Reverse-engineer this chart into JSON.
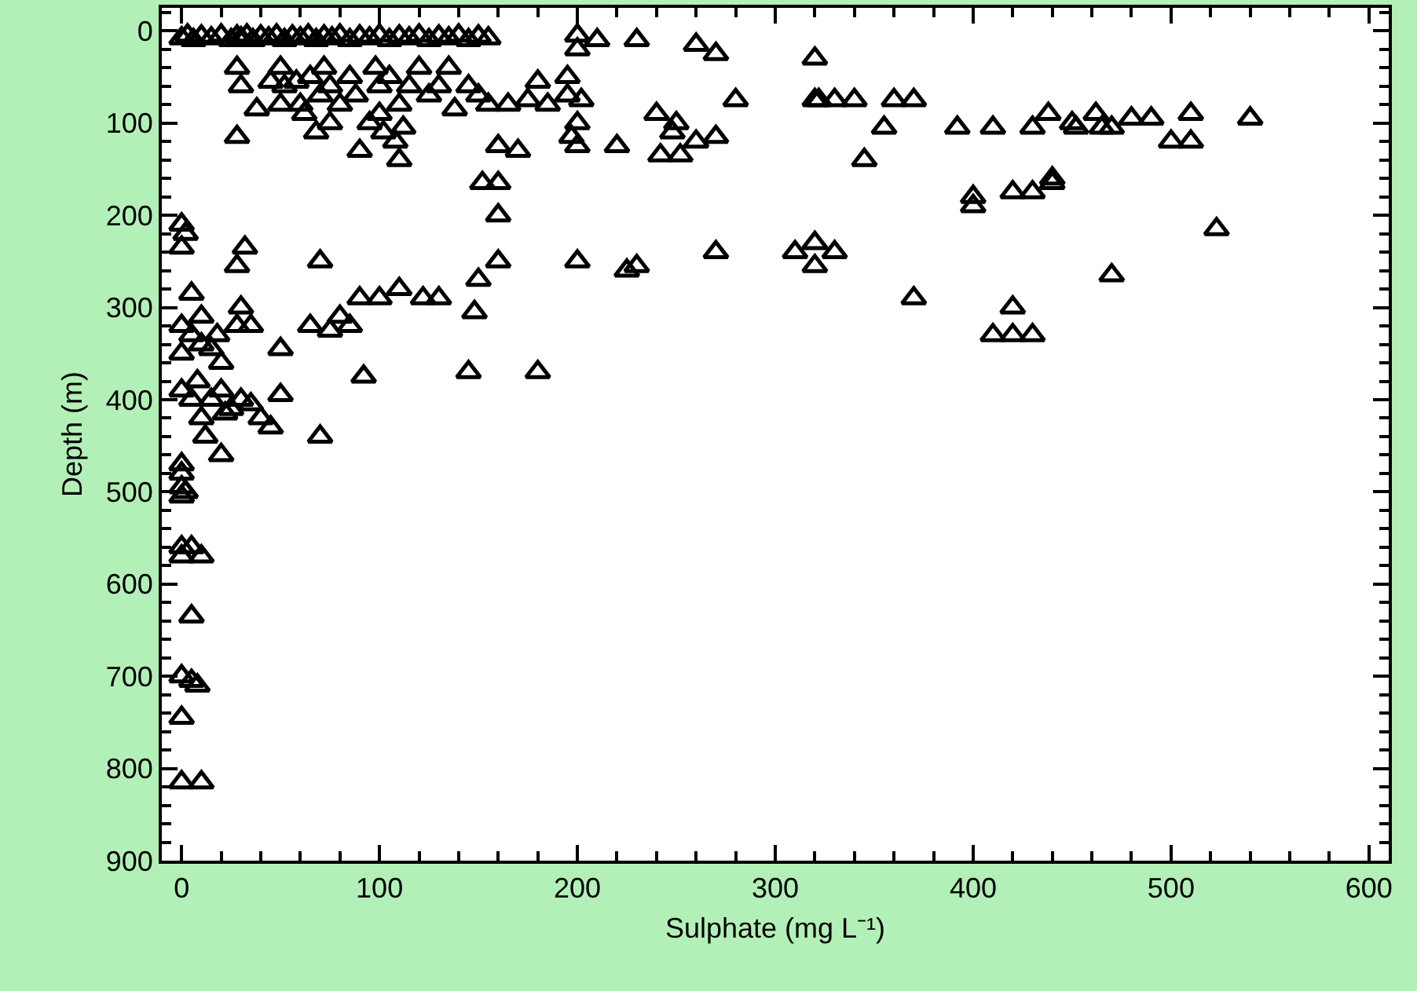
{
  "chart_data": {
    "type": "scatter",
    "xlabel": "Sulphate (mg L⁻¹)",
    "ylabel": "Depth (m)",
    "xlim": [
      -10,
      610
    ],
    "xticks": [
      0,
      100,
      200,
      300,
      400,
      500,
      600
    ],
    "ylim": [
      900,
      -25
    ],
    "yticks": [
      0,
      100,
      200,
      300,
      400,
      500,
      600,
      700,
      800,
      900
    ],
    "grid": false,
    "marker": "triangle",
    "series": [
      {
        "color": "#000000",
        "x": [
          0,
          3,
          6,
          10,
          15,
          20,
          25,
          28,
          30,
          33,
          36,
          40,
          44,
          48,
          52,
          56,
          60,
          64,
          68,
          72,
          76,
          80,
          85,
          90,
          95,
          100,
          105,
          110,
          115,
          120,
          125,
          130,
          135,
          140,
          145,
          150,
          155,
          200,
          200,
          210,
          230,
          260,
          270,
          320,
          28,
          30,
          28,
          38,
          45,
          50,
          50,
          52,
          58,
          60,
          62,
          65,
          68,
          70,
          72,
          75,
          75,
          80,
          85,
          88,
          90,
          95,
          98,
          100,
          100,
          102,
          105,
          108,
          110,
          110,
          112,
          115,
          120,
          125,
          130,
          135,
          138,
          145,
          150,
          152,
          155,
          160,
          160,
          160,
          165,
          170,
          175,
          180,
          185,
          195,
          195,
          197,
          200,
          200,
          202,
          220,
          240,
          242,
          248,
          250,
          252,
          260,
          270,
          280,
          320,
          322,
          330,
          340,
          345,
          355,
          360,
          370,
          392,
          410,
          430,
          438,
          450,
          452,
          462,
          465,
          470,
          480,
          490,
          500,
          510,
          510,
          540,
          400,
          400,
          420,
          430,
          440,
          440,
          523,
          470,
          0,
          2,
          0,
          28,
          32,
          70,
          160,
          200,
          225,
          230,
          270,
          310,
          320,
          320,
          330,
          150,
          370,
          420,
          410,
          420,
          430,
          5,
          10,
          0,
          5,
          10,
          0,
          15,
          20,
          28,
          30,
          35,
          50,
          65,
          75,
          80,
          85,
          90,
          100,
          110,
          122,
          130,
          148,
          5,
          0,
          8,
          10,
          15,
          20,
          25,
          30,
          40,
          45,
          50,
          12,
          20,
          70,
          92,
          145,
          180,
          18,
          22,
          35,
          0,
          0,
          0,
          0,
          2,
          0,
          0,
          5,
          10,
          5,
          0,
          5,
          8,
          0,
          0,
          10
        ],
        "values": [
          8,
          5,
          10,
          6,
          8,
          5,
          10,
          6,
          8,
          5,
          10,
          6,
          8,
          5,
          10,
          6,
          8,
          5,
          10,
          6,
          8,
          5,
          10,
          6,
          8,
          5,
          10,
          6,
          8,
          5,
          10,
          6,
          8,
          5,
          10,
          6,
          8,
          5,
          20,
          10,
          10,
          15,
          25,
          30,
          40,
          60,
          115,
          85,
          55,
          40,
          80,
          60,
          55,
          80,
          90,
          50,
          110,
          70,
          40,
          60,
          100,
          80,
          50,
          70,
          130,
          100,
          40,
          60,
          90,
          110,
          50,
          120,
          80,
          140,
          105,
          60,
          40,
          70,
          60,
          40,
          85,
          60,
          70,
          165,
          80,
          125,
          165,
          200,
          80,
          130,
          75,
          55,
          80,
          50,
          70,
          115,
          125,
          100,
          75,
          125,
          90,
          135,
          110,
          100,
          135,
          120,
          115,
          75,
          75,
          75,
          75,
          75,
          140,
          105,
          75,
          75,
          105,
          105,
          105,
          90,
          100,
          105,
          90,
          105,
          105,
          95,
          95,
          120,
          90,
          120,
          95,
          180,
          190,
          175,
          175,
          160,
          165,
          215,
          265,
          210,
          220,
          235,
          255,
          235,
          250,
          250,
          250,
          260,
          255,
          240,
          240,
          230,
          255,
          240,
          270,
          290,
          300,
          330,
          330,
          330,
          285,
          310,
          320,
          330,
          340,
          350,
          345,
          360,
          320,
          300,
          320,
          345,
          320,
          325,
          310,
          320,
          290,
          290,
          280,
          290,
          290,
          305,
          400,
          390,
          380,
          420,
          400,
          390,
          410,
          400,
          420,
          430,
          395,
          440,
          460,
          440,
          375,
          370,
          370,
          330,
          415,
          405,
          470,
          480,
          495,
          505,
          500,
          560,
          570,
          560,
          570,
          635,
          700,
          705,
          710,
          745,
          815,
          815
        ]
      }
    ]
  }
}
